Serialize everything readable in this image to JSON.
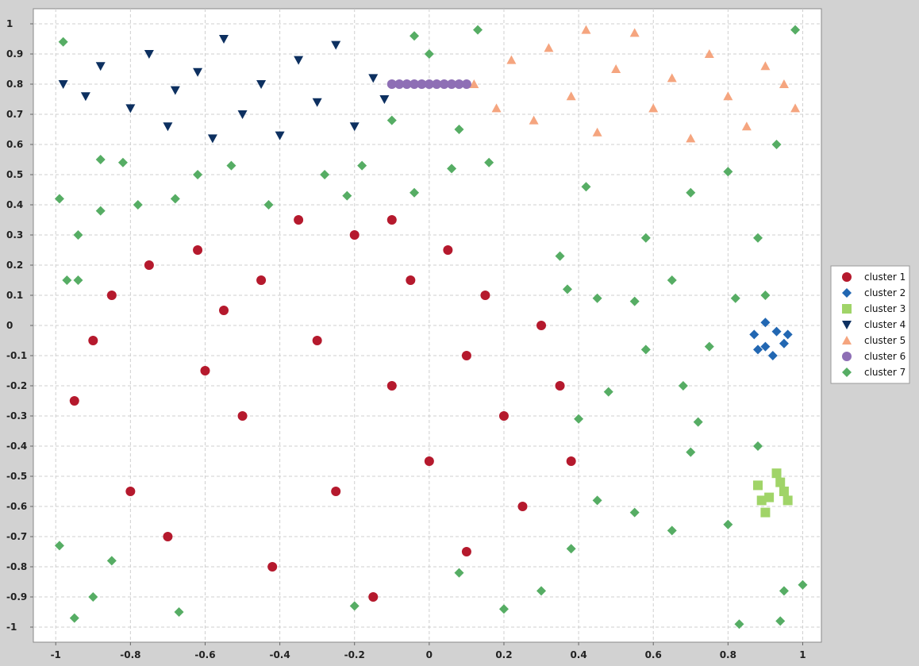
{
  "chart_data": {
    "type": "scatter",
    "title": "",
    "xlabel": "",
    "ylabel": "",
    "xlim": [
      -1.06,
      1.05
    ],
    "ylim": [
      -1.05,
      1.05
    ],
    "xticks": [
      -1,
      -0.8,
      -0.6,
      -0.4,
      -0.2,
      0,
      0.2,
      0.4,
      0.6,
      0.8,
      1
    ],
    "xtick_labels": [
      "-1",
      "-0.8",
      "-0.6",
      "-0.4",
      "-0.2",
      "0",
      "0.2",
      "0.4",
      "0.6",
      "0.8",
      "1"
    ],
    "yticks": [
      1,
      0.9,
      0.8,
      0.7,
      0.6,
      0.5,
      0.4,
      0.3,
      0.2,
      0.1,
      0,
      -0.1,
      -0.2,
      -0.3,
      -0.4,
      -0.5,
      -0.6,
      -0.7,
      -0.8,
      -0.9,
      -1
    ],
    "ytick_labels": [
      "1",
      "0.9",
      "0.8",
      "0.7",
      "0.6",
      "0.5",
      "0.4",
      "0.3",
      "0.2",
      "0.1",
      "0",
      "-0.1",
      "-0.2",
      "-0.3",
      "-0.4",
      "-0.5",
      "-0.6",
      "-0.7",
      "-0.8",
      "-0.9",
      "-1"
    ],
    "grid": true,
    "legend_position": "right",
    "series": [
      {
        "name": "cluster 1",
        "marker": "circle",
        "color": "#b5192d",
        "points": [
          [
            -0.95,
            -0.25
          ],
          [
            -0.9,
            -0.05
          ],
          [
            -0.85,
            0.1
          ],
          [
            -0.8,
            -0.55
          ],
          [
            -0.75,
            0.2
          ],
          [
            -0.7,
            -0.7
          ],
          [
            -0.62,
            0.25
          ],
          [
            -0.55,
            0.05
          ],
          [
            -0.5,
            -0.3
          ],
          [
            -0.42,
            -0.8
          ],
          [
            -0.35,
            0.35
          ],
          [
            -0.3,
            -0.05
          ],
          [
            -0.25,
            -0.55
          ],
          [
            -0.2,
            0.3
          ],
          [
            -0.15,
            -0.9
          ],
          [
            -0.1,
            -0.2
          ],
          [
            -0.05,
            0.15
          ],
          [
            0,
            -0.45
          ],
          [
            0.05,
            0.25
          ],
          [
            0.1,
            -0.75
          ],
          [
            0.15,
            0.1
          ],
          [
            0.2,
            -0.3
          ],
          [
            0.25,
            -0.6
          ],
          [
            0.3,
            0.0
          ],
          [
            0.35,
            -0.2
          ],
          [
            0.38,
            -0.45
          ],
          [
            -0.6,
            -0.15
          ],
          [
            -0.45,
            0.15
          ],
          [
            -0.1,
            0.35
          ],
          [
            0.1,
            -0.1
          ]
        ]
      },
      {
        "name": "cluster 2",
        "marker": "diamond",
        "color": "#2267b2",
        "points": [
          [
            0.87,
            -0.03
          ],
          [
            0.9,
            -0.07
          ],
          [
            0.93,
            -0.02
          ],
          [
            0.95,
            -0.06
          ],
          [
            0.9,
            0.01
          ],
          [
            0.92,
            -0.1
          ],
          [
            0.88,
            -0.08
          ],
          [
            0.96,
            -0.03
          ]
        ]
      },
      {
        "name": "cluster 3",
        "marker": "square",
        "color": "#a0d468",
        "points": [
          [
            0.88,
            -0.53
          ],
          [
            0.91,
            -0.57
          ],
          [
            0.94,
            -0.52
          ],
          [
            0.96,
            -0.58
          ],
          [
            0.9,
            -0.62
          ],
          [
            0.93,
            -0.49
          ],
          [
            0.89,
            -0.58
          ],
          [
            0.95,
            -0.55
          ]
        ]
      },
      {
        "name": "cluster 4",
        "marker": "triangle-down",
        "color": "#0d3060",
        "points": [
          [
            -0.98,
            0.8
          ],
          [
            -0.92,
            0.76
          ],
          [
            -0.88,
            0.86
          ],
          [
            -0.8,
            0.72
          ],
          [
            -0.75,
            0.9
          ],
          [
            -0.7,
            0.66
          ],
          [
            -0.62,
            0.84
          ],
          [
            -0.55,
            0.95
          ],
          [
            -0.5,
            0.7
          ],
          [
            -0.45,
            0.8
          ],
          [
            -0.4,
            0.63
          ],
          [
            -0.35,
            0.88
          ],
          [
            -0.3,
            0.74
          ],
          [
            -0.25,
            0.93
          ],
          [
            -0.2,
            0.66
          ],
          [
            -0.15,
            0.82
          ],
          [
            -0.12,
            0.75
          ],
          [
            -0.58,
            0.62
          ],
          [
            -0.68,
            0.78
          ]
        ]
      },
      {
        "name": "cluster 5",
        "marker": "triangle-up",
        "color": "#f5a57f",
        "points": [
          [
            0.12,
            0.8
          ],
          [
            0.18,
            0.72
          ],
          [
            0.22,
            0.88
          ],
          [
            0.28,
            0.68
          ],
          [
            0.32,
            0.92
          ],
          [
            0.38,
            0.76
          ],
          [
            0.45,
            0.64
          ],
          [
            0.5,
            0.85
          ],
          [
            0.55,
            0.97
          ],
          [
            0.6,
            0.72
          ],
          [
            0.65,
            0.82
          ],
          [
            0.7,
            0.62
          ],
          [
            0.75,
            0.9
          ],
          [
            0.8,
            0.76
          ],
          [
            0.85,
            0.66
          ],
          [
            0.9,
            0.86
          ],
          [
            0.95,
            0.8
          ],
          [
            0.98,
            0.72
          ],
          [
            0.42,
            0.98
          ]
        ]
      },
      {
        "name": "cluster 6",
        "marker": "circle",
        "color": "#8e6fb5",
        "points": [
          [
            -0.1,
            0.8
          ],
          [
            -0.08,
            0.8
          ],
          [
            -0.06,
            0.8
          ],
          [
            -0.04,
            0.8
          ],
          [
            -0.02,
            0.8
          ],
          [
            0.0,
            0.8
          ],
          [
            0.02,
            0.8
          ],
          [
            0.04,
            0.8
          ],
          [
            0.06,
            0.8
          ],
          [
            0.08,
            0.8
          ],
          [
            0.1,
            0.8
          ]
        ]
      },
      {
        "name": "cluster 7",
        "marker": "diamond",
        "color": "#56ad64",
        "points": [
          [
            -0.98,
            0.94
          ],
          [
            -0.1,
            0.68
          ],
          [
            -0.04,
            0.96
          ],
          [
            0.0,
            0.9
          ],
          [
            0.13,
            0.98
          ],
          [
            0.08,
            0.65
          ],
          [
            0.98,
            0.98
          ],
          [
            -0.99,
            0.42
          ],
          [
            -0.94,
            0.3
          ],
          [
            -0.88,
            0.55
          ],
          [
            -0.82,
            0.54
          ],
          [
            -0.68,
            0.42
          ],
          [
            -0.62,
            0.5
          ],
          [
            -0.53,
            0.53
          ],
          [
            -0.43,
            0.4
          ],
          [
            -0.28,
            0.5
          ],
          [
            -0.22,
            0.43
          ],
          [
            -0.18,
            0.53
          ],
          [
            -0.04,
            0.44
          ],
          [
            0.06,
            0.52
          ],
          [
            0.16,
            0.54
          ],
          [
            0.35,
            0.23
          ],
          [
            0.42,
            0.46
          ],
          [
            0.58,
            0.29
          ],
          [
            0.7,
            0.44
          ],
          [
            0.8,
            0.51
          ],
          [
            0.88,
            0.29
          ],
          [
            0.93,
            0.6
          ],
          [
            -0.99,
            -0.73
          ],
          [
            -0.95,
            -0.97
          ],
          [
            -0.9,
            -0.9
          ],
          [
            -0.85,
            -0.78
          ],
          [
            -0.67,
            -0.95
          ],
          [
            -0.2,
            -0.93
          ],
          [
            0.08,
            -0.82
          ],
          [
            0.2,
            -0.94
          ],
          [
            0.3,
            -0.88
          ],
          [
            0.38,
            -0.74
          ],
          [
            0.45,
            -0.58
          ],
          [
            0.55,
            -0.62
          ],
          [
            0.65,
            -0.68
          ],
          [
            0.7,
            -0.42
          ],
          [
            0.8,
            -0.66
          ],
          [
            0.88,
            -0.4
          ],
          [
            0.95,
            -0.88
          ],
          [
            1.0,
            -0.86
          ],
          [
            0.83,
            -0.99
          ],
          [
            0.94,
            -0.98
          ],
          [
            0.4,
            -0.31
          ],
          [
            0.48,
            -0.22
          ],
          [
            0.58,
            -0.08
          ],
          [
            0.68,
            -0.2
          ],
          [
            0.75,
            -0.07
          ],
          [
            0.82,
            0.09
          ],
          [
            0.9,
            0.1
          ],
          [
            0.37,
            0.12
          ],
          [
            0.45,
            0.09
          ],
          [
            0.55,
            0.08
          ],
          [
            0.65,
            0.15
          ],
          [
            0.72,
            -0.32
          ],
          [
            -0.97,
            0.15
          ],
          [
            -0.88,
            0.38
          ],
          [
            -0.78,
            0.4
          ],
          [
            -0.94,
            0.15
          ]
        ]
      }
    ]
  }
}
